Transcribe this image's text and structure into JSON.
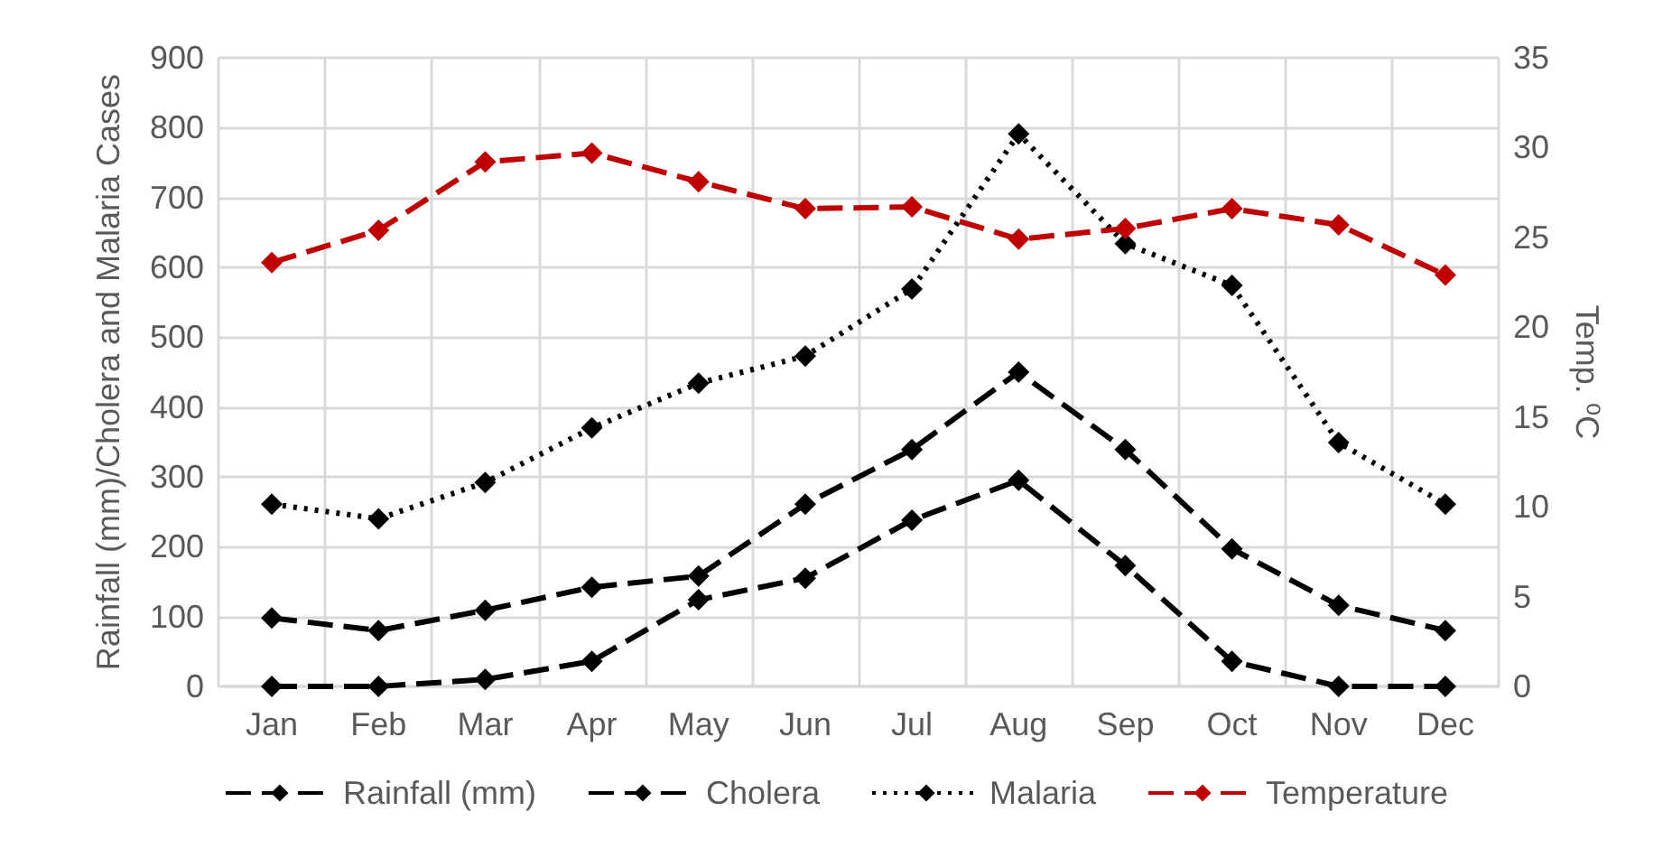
{
  "chart_data": {
    "type": "line",
    "ylabel": "Rainfall (mm)/Cholera and Malaria Cases",
    "y2label": "Temp. ⁰C",
    "categories": [
      "Jan",
      "Feb",
      "Mar",
      "Apr",
      "May",
      "Jun",
      "Jul",
      "Aug",
      "Sep",
      "Oct",
      "Nov",
      "Dec"
    ],
    "series": [
      {
        "name": "Rainfall (mm)",
        "color": "#000000",
        "line_style": "dashed",
        "values": [
          0,
          0,
          10,
          36,
          124,
          155,
          238,
          295,
          173,
          36,
          0,
          0
        ]
      },
      {
        "name": "Cholera",
        "color": "#000000",
        "line_style": "dashed",
        "values": [
          98,
          80,
          109,
          142,
          158,
          261,
          339,
          450,
          339,
          197,
          116,
          80
        ]
      },
      {
        "name": "Malaria",
        "color": "#000000",
        "line_style": "dotted",
        "values": [
          261,
          240,
          292,
          370,
          434,
          473,
          569,
          791,
          634,
          574,
          349,
          261
        ]
      },
      {
        "name": "Temperature",
        "color": "#c00000",
        "line_style": "dashed",
        "axis": "y2",
        "values": [
          23.6,
          25.4,
          29.2,
          29.7,
          28.1,
          26.6,
          26.7,
          24.9,
          25.5,
          26.6,
          25.7,
          22.9
        ]
      }
    ],
    "ylim": [
      0,
      900
    ],
    "yticks": [
      0,
      100,
      200,
      300,
      400,
      500,
      600,
      700,
      800,
      900
    ],
    "y2lim": [
      0,
      35
    ],
    "y2ticks": [
      0,
      5,
      10,
      15,
      20,
      25,
      30,
      35
    ],
    "grid": true,
    "legend": "bottom",
    "marker": "diamond"
  }
}
